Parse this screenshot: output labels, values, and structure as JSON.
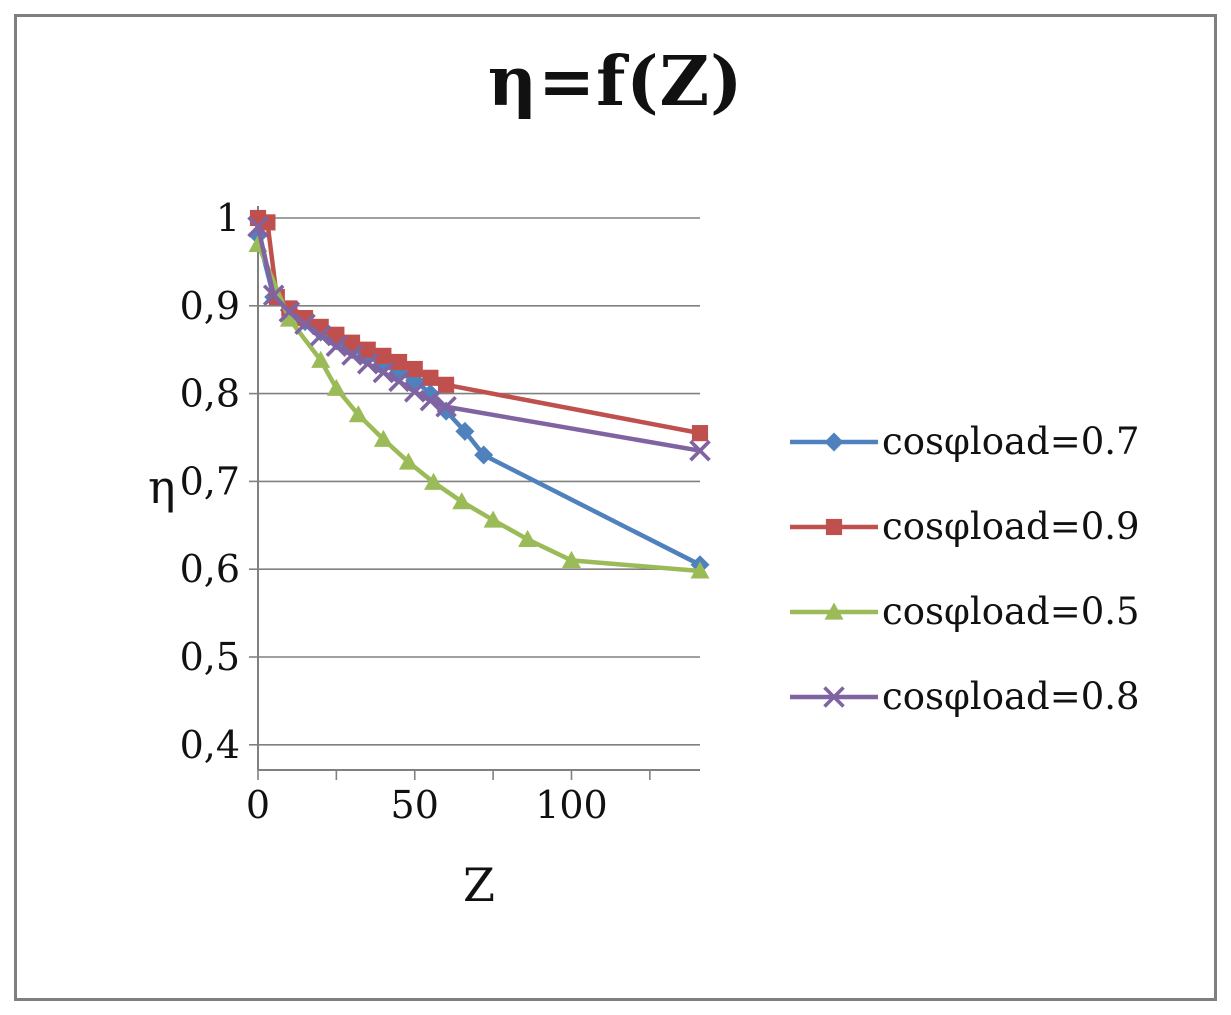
{
  "figure": {
    "border_color": "#7f7f7f",
    "background": "#ffffff"
  },
  "chart_data": {
    "type": "line",
    "title": "η=f(Z)",
    "xlabel": "Z",
    "ylabel": "η",
    "xlim": [
      0,
      141
    ],
    "ylim": [
      0.4,
      1.0
    ],
    "grid": true,
    "legend_position": "right",
    "xticks": [
      0,
      50,
      100
    ],
    "xtick_labels": [
      "0",
      "50",
      "100"
    ],
    "xtick_minor_step": 25,
    "ytick_values": [
      1.0,
      0.9,
      0.8,
      0.7,
      0.6,
      0.5,
      0.4
    ],
    "ytick_labels": [
      "1",
      "0,9",
      "0,8",
      "0,7",
      "0,6",
      "0,5",
      "0,4"
    ],
    "grid_color": "#808080",
    "axis_color": "#808080",
    "series": [
      {
        "name": "cosφload=0.7",
        "color": "#4F81BD",
        "marker": "diamond",
        "x": [
          0,
          5,
          10,
          15,
          20,
          25,
          30,
          35,
          40,
          45,
          50,
          55,
          60,
          66,
          72,
          141
        ],
        "y": [
          0.98,
          0.91,
          0.895,
          0.882,
          0.87,
          0.86,
          0.85,
          0.842,
          0.833,
          0.824,
          0.815,
          0.8,
          0.78,
          0.757,
          0.73,
          0.605
        ]
      },
      {
        "name": "cosφload=0.9",
        "color": "#C0504D",
        "marker": "square",
        "x": [
          0,
          3,
          6,
          10,
          15,
          20,
          25,
          30,
          35,
          40,
          45,
          50,
          55,
          60,
          141
        ],
        "y": [
          1.0,
          0.995,
          0.91,
          0.897,
          0.886,
          0.876,
          0.867,
          0.858,
          0.85,
          0.843,
          0.836,
          0.828,
          0.818,
          0.81,
          0.755
        ]
      },
      {
        "name": "cosφload=0.5",
        "color": "#9BBB59",
        "marker": "triangle",
        "x": [
          0,
          10,
          20,
          25,
          32,
          40,
          48,
          56,
          65,
          75,
          86,
          100,
          141
        ],
        "y": [
          0.97,
          0.885,
          0.838,
          0.806,
          0.776,
          0.748,
          0.722,
          0.699,
          0.677,
          0.656,
          0.634,
          0.61,
          0.598
        ]
      },
      {
        "name": "cosφload=0.8",
        "color": "#8064A2",
        "marker": "x",
        "x": [
          0,
          5,
          10,
          15,
          20,
          25,
          30,
          35,
          40,
          45,
          50,
          55,
          60,
          141
        ],
        "y": [
          0.99,
          0.912,
          0.893,
          0.879,
          0.866,
          0.854,
          0.844,
          0.834,
          0.824,
          0.814,
          0.802,
          0.792,
          0.785,
          0.735
        ]
      }
    ]
  }
}
